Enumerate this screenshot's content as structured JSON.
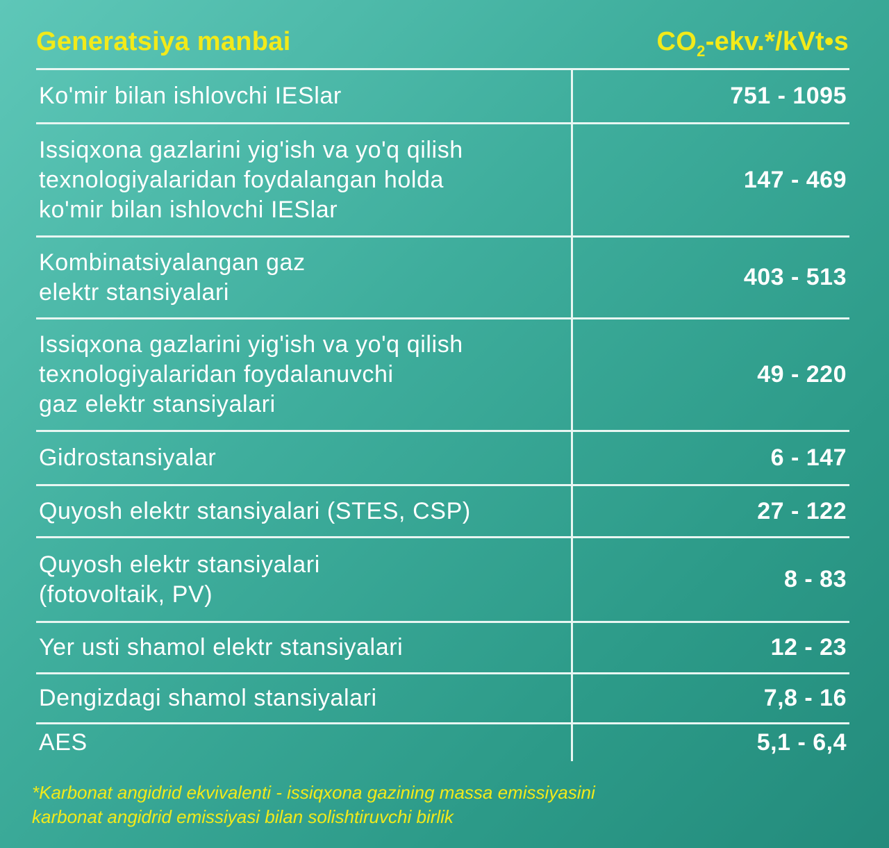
{
  "header": {
    "left_title": "Generatsiya manbai",
    "right_prefix": "CO",
    "right_sub": "2",
    "right_suffix": "-ekv.*/kVt•s"
  },
  "colors": {
    "accent_yellow": "#f2ea1a",
    "rule_white": "#e8f6f2",
    "bg_light": "#5ec7b8",
    "bg_dark": "#238b7c"
  },
  "rows": [
    {
      "name": "Ko'mir bilan ishlovchi IESlar",
      "value": "751 - 1095"
    },
    {
      "name": "Issiqxona gazlarini yig'ish va yo'q qilish\ntexnologiyalaridan foydalangan holda\nko'mir bilan ishlovchi IESlar",
      "value": "147 - 469"
    },
    {
      "name": "Kombinatsiyalangan gaz\nelektr stansiyalari",
      "value": "403 - 513"
    },
    {
      "name": "Issiqxona gazlarini yig'ish va yo'q qilish\ntexnologiyalaridan foydalanuvchi\ngaz elektr stansiyalari",
      "value": "49 - 220"
    },
    {
      "name": "Gidrostansiyalar",
      "value": "6 - 147"
    },
    {
      "name": "Quyosh elektr stansiyalari (STES, CSP)",
      "value": "27 - 122"
    },
    {
      "name": "Quyosh elektr stansiyalari\n(fotovoltaik, PV)",
      "value": "8 - 83"
    },
    {
      "name": "Yer usti shamol elektr stansiyalari",
      "value": "12 - 23"
    },
    {
      "name": "Dengizdagi shamol stansiyalari",
      "value": "7,8 - 16"
    },
    {
      "name": "AES",
      "value": "5,1 - 6,4"
    }
  ],
  "footnote": "*Karbonat angidrid ekvivalenti - issiqxona gazining massa emissiyasini\nkarbonat angidrid emissiyasi bilan solishtiruvchi birlik"
}
